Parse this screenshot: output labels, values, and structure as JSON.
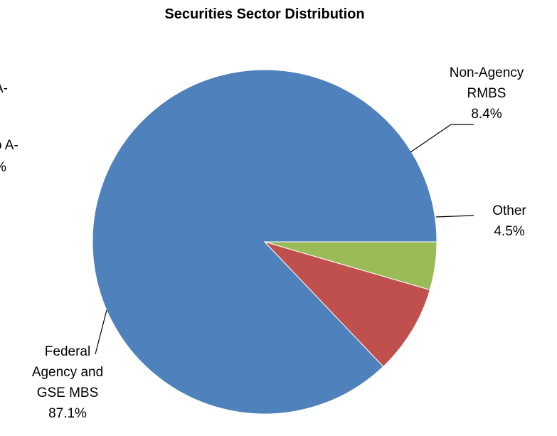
{
  "chart_data": {
    "type": "pie",
    "title": "Securities Sector Distribution",
    "start_angle_deg": 0,
    "direction": "counterclockwise",
    "slices": [
      {
        "label_lines": [
          "Federal",
          "Agency and",
          "GSE MBS"
        ],
        "value": 87.1,
        "value_label": "87.1%",
        "color": "#4f81bd"
      },
      {
        "label_lines": [
          "Non-Agency",
          "RMBS"
        ],
        "value": 8.4,
        "value_label": "8.4%",
        "color": "#c0504d"
      },
      {
        "label_lines": [
          "Other"
        ],
        "value": 4.5,
        "value_label": "4.5%",
        "color": "#9bbb59"
      }
    ],
    "clipped_fragments": [
      {
        "lines": [
          "A-"
        ]
      },
      {
        "lines": [
          "o A-",
          "%"
        ]
      }
    ]
  }
}
